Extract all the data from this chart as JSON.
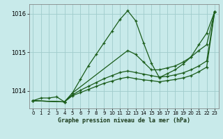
{
  "title": "Graphe pression niveau de la mer (hPa)",
  "bg_color": "#c8eaea",
  "grid_color": "#a0cccc",
  "line_color": "#1a5c1a",
  "ylim": [
    1013.55,
    1016.25
  ],
  "xlim": [
    -0.5,
    23.5
  ],
  "xticks": [
    0,
    1,
    2,
    3,
    4,
    5,
    6,
    7,
    8,
    9,
    10,
    11,
    12,
    13,
    14,
    15,
    16,
    17,
    18,
    19,
    20,
    21,
    22,
    23
  ],
  "yticks": [
    1014,
    1015,
    1016
  ],
  "series": [
    {
      "x": [
        0,
        1,
        2,
        3,
        4,
        5,
        6,
        7,
        8,
        9,
        10,
        11,
        12,
        13,
        14,
        15,
        16,
        17,
        18,
        19,
        20,
        21,
        22,
        23
      ],
      "y": [
        1013.75,
        1013.82,
        1013.82,
        1013.85,
        1013.72,
        1013.95,
        1014.3,
        1014.65,
        1014.95,
        1015.25,
        1015.55,
        1015.85,
        1016.08,
        1015.82,
        1015.25,
        1014.72,
        1014.35,
        1014.45,
        1014.55,
        1014.7,
        1014.88,
        1015.2,
        1015.5,
        1016.05
      ]
    },
    {
      "x": [
        0,
        4,
        5,
        12,
        13,
        14,
        15,
        16,
        17,
        18,
        19,
        20,
        21,
        22,
        23
      ],
      "y": [
        1013.75,
        1013.72,
        1013.95,
        1015.05,
        1014.95,
        1014.75,
        1014.55,
        1014.55,
        1014.6,
        1014.65,
        1014.75,
        1014.88,
        1015.05,
        1015.2,
        1016.05
      ]
    },
    {
      "x": [
        0,
        4,
        5,
        6,
        7,
        8,
        9,
        10,
        11,
        12,
        13,
        14,
        15,
        16,
        17,
        18,
        19,
        20,
        21,
        22,
        23
      ],
      "y": [
        1013.75,
        1013.72,
        1013.9,
        1014.02,
        1014.12,
        1014.22,
        1014.32,
        1014.4,
        1014.48,
        1014.52,
        1014.48,
        1014.44,
        1014.4,
        1014.36,
        1014.38,
        1014.42,
        1014.47,
        1014.55,
        1014.65,
        1014.78,
        1016.05
      ]
    },
    {
      "x": [
        0,
        4,
        5,
        6,
        7,
        8,
        9,
        10,
        11,
        12,
        13,
        14,
        15,
        16,
        17,
        18,
        19,
        20,
        21,
        22,
        23
      ],
      "y": [
        1013.75,
        1013.72,
        1013.88,
        1013.96,
        1014.04,
        1014.12,
        1014.2,
        1014.26,
        1014.32,
        1014.36,
        1014.32,
        1014.29,
        1014.27,
        1014.24,
        1014.27,
        1014.3,
        1014.34,
        1014.4,
        1014.5,
        1014.62,
        1016.05
      ]
    }
  ]
}
